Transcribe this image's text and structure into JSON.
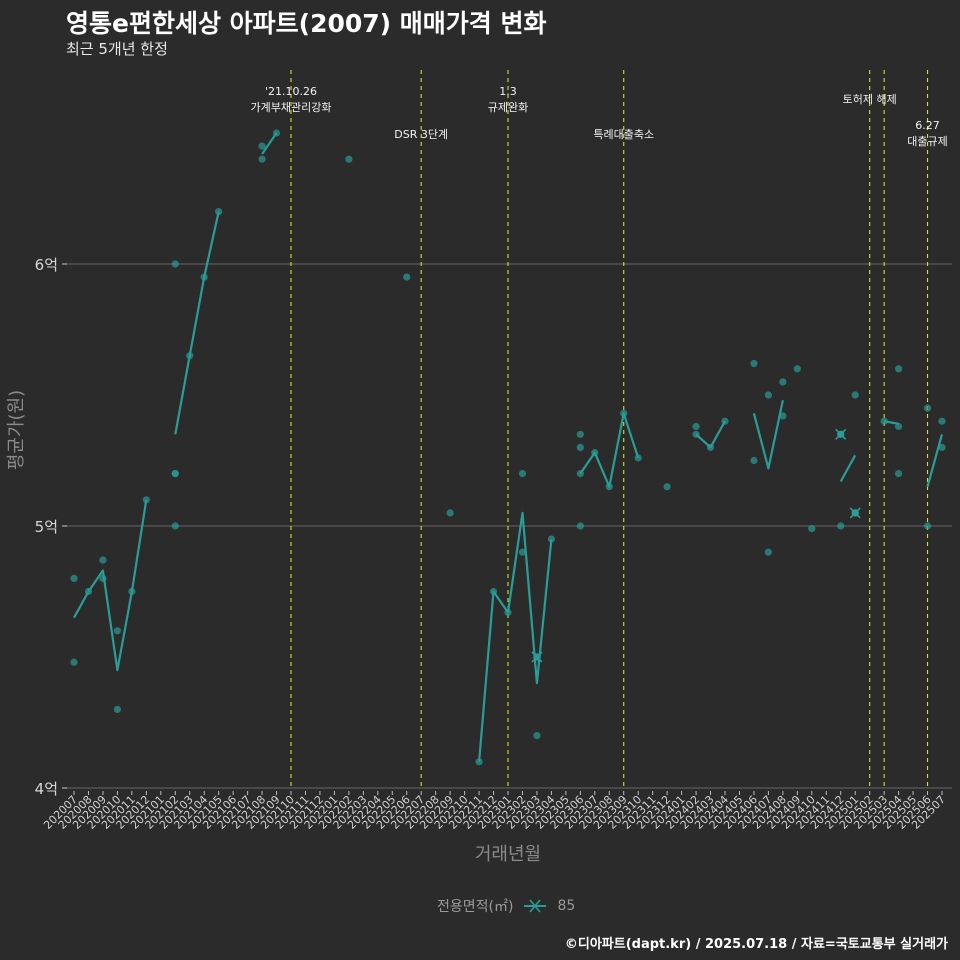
{
  "title": "영통e편한세상 아파트(2007) 매매가격 변화",
  "subtitle": "최근 5개년 한정",
  "caption": "©디아파트(dapt.kr) / 2025.07.18 / 자료=국토교통부 실거래가",
  "colors": {
    "series": "#2a9d97",
    "vline": "#d9e021",
    "grid": "#5a5a5a",
    "bg": "#2b2b2b"
  },
  "chart_data": {
    "type": "line",
    "xlabel": "거래년월",
    "ylabel": "평균가(원)",
    "ylim": [
      4.0,
      6.0
    ],
    "yticks": [
      {
        "value": 4,
        "label": "4억"
      },
      {
        "value": 5,
        "label": "5억"
      },
      {
        "value": 6,
        "label": "6억"
      }
    ],
    "categories": [
      "202007",
      "202008",
      "202009",
      "202010",
      "202011",
      "202012",
      "202101",
      "202102",
      "202103",
      "202104",
      "202105",
      "202106",
      "202107",
      "202108",
      "202109",
      "202110",
      "202111",
      "202112",
      "202201",
      "202202",
      "202203",
      "202204",
      "202205",
      "202206",
      "202207",
      "202208",
      "202209",
      "202210",
      "202211",
      "202212",
      "202301",
      "202302",
      "202303",
      "202304",
      "202305",
      "202306",
      "202307",
      "202308",
      "202309",
      "202310",
      "202311",
      "202312",
      "202401",
      "202402",
      "202403",
      "202404",
      "202405",
      "202406",
      "202407",
      "202408",
      "202409",
      "202410",
      "202411",
      "202412",
      "202501",
      "202502",
      "202503",
      "202504",
      "202505",
      "202506",
      "202507"
    ],
    "legend": {
      "title": "전용면적(㎡)",
      "series_label": "85"
    },
    "series": [
      {
        "name": "85",
        "mean_line": [
          [
            [
              "202007",
              4.65
            ],
            [
              "202008",
              4.75
            ],
            [
              "202009",
              4.83
            ],
            [
              "202010",
              4.45
            ],
            [
              "202011",
              4.75
            ],
            [
              "202012",
              5.1
            ]
          ],
          [
            [
              "202102",
              5.35
            ],
            [
              "202103",
              5.65
            ],
            [
              "202104",
              5.95
            ],
            [
              "202105",
              6.2
            ]
          ],
          [
            [
              "202108",
              6.42
            ],
            [
              "202109",
              6.5
            ]
          ],
          [
            [
              "202211",
              4.1
            ],
            [
              "202212",
              4.75
            ],
            [
              "202301",
              4.67
            ],
            [
              "202302",
              5.05
            ],
            [
              "202303",
              4.4
            ],
            [
              "202304",
              4.95
            ]
          ],
          [
            [
              "202306",
              5.2
            ],
            [
              "202307",
              5.28
            ],
            [
              "202308",
              5.15
            ],
            [
              "202309",
              5.43
            ],
            [
              "202310",
              5.26
            ]
          ],
          [
            [
              "202402",
              5.35
            ],
            [
              "202403",
              5.3
            ],
            [
              "202404",
              5.4
            ]
          ],
          [
            [
              "202406",
              5.43
            ],
            [
              "202407",
              5.22
            ],
            [
              "202408",
              5.48
            ]
          ],
          [
            [
              "202412",
              5.17
            ],
            [
              "202501",
              5.27
            ]
          ],
          [
            [
              "202503",
              5.4
            ],
            [
              "202504",
              5.39
            ]
          ],
          [
            [
              "202506",
              5.15
            ],
            [
              "202507",
              5.35
            ]
          ]
        ],
        "points": [
          [
            "202007",
            4.8
          ],
          [
            "202007",
            4.48
          ],
          [
            "202008",
            4.75
          ],
          [
            "202009",
            4.87
          ],
          [
            "202009",
            4.8
          ],
          [
            "202010",
            4.6
          ],
          [
            "202010",
            4.3
          ],
          [
            "202011",
            4.75
          ],
          [
            "202012",
            5.1
          ],
          [
            "202102",
            6.0
          ],
          [
            "202102",
            5.2
          ],
          [
            "202102",
            5.2
          ],
          [
            "202102",
            5.0
          ],
          [
            "202103",
            5.65
          ],
          [
            "202104",
            5.95
          ],
          [
            "202105",
            6.2
          ],
          [
            "202108",
            6.45
          ],
          [
            "202108",
            6.4
          ],
          [
            "202109",
            6.5
          ],
          [
            "202202",
            6.4
          ],
          [
            "202206",
            5.95
          ],
          [
            "202209",
            5.05
          ],
          [
            "202211",
            4.1
          ],
          [
            "202212",
            4.75
          ],
          [
            "202301",
            4.67
          ],
          [
            "202302",
            5.2
          ],
          [
            "202302",
            4.9
          ],
          [
            "202303",
            4.5
          ],
          [
            "202303",
            4.2
          ],
          [
            "202304",
            4.95
          ],
          [
            "202306",
            5.35
          ],
          [
            "202306",
            5.3
          ],
          [
            "202306",
            5.2
          ],
          [
            "202306",
            5.0
          ],
          [
            "202307",
            5.28
          ],
          [
            "202308",
            5.15
          ],
          [
            "202309",
            5.43
          ],
          [
            "202310",
            5.26
          ],
          [
            "202312",
            5.15
          ],
          [
            "202402",
            5.38
          ],
          [
            "202402",
            5.35
          ],
          [
            "202403",
            5.3
          ],
          [
            "202404",
            5.4
          ],
          [
            "202406",
            5.62
          ],
          [
            "202406",
            5.25
          ],
          [
            "202407",
            5.5
          ],
          [
            "202407",
            4.9
          ],
          [
            "202408",
            5.55
          ],
          [
            "202408",
            5.42
          ],
          [
            "202409",
            5.6
          ],
          [
            "202410",
            4.99
          ],
          [
            "202412",
            5.0
          ],
          [
            "202412",
            5.35
          ],
          [
            "202501",
            5.5
          ],
          [
            "202501",
            5.05
          ],
          [
            "202503",
            5.4
          ],
          [
            "202504",
            5.6
          ],
          [
            "202504",
            5.38
          ],
          [
            "202504",
            5.2
          ],
          [
            "202506",
            5.45
          ],
          [
            "202506",
            5.0
          ],
          [
            "202507",
            5.4
          ],
          [
            "202507",
            5.3
          ]
        ],
        "cancelled": [
          [
            "202303",
            4.5
          ],
          [
            "202412",
            5.35
          ],
          [
            "202501",
            5.05
          ]
        ]
      }
    ],
    "vlines": [
      {
        "x": "202110",
        "labels": [
          "'21.10.26",
          "가계부채관리강화"
        ],
        "row": 1
      },
      {
        "x": "202207",
        "labels": [
          "DSR 3단계"
        ],
        "row": 3
      },
      {
        "x": "202301",
        "labels": [
          "1.3",
          "규제완화"
        ],
        "row": 1
      },
      {
        "x": "202309",
        "labels": [
          "특례대출축소"
        ],
        "row": 3
      },
      {
        "x": "202502",
        "labels": [
          "토허제 해제"
        ],
        "row": 2
      },
      {
        "x": "202503",
        "labels": [],
        "row": 2
      },
      {
        "x": "202506",
        "labels": [
          "6.27",
          "대출규제"
        ],
        "row": 4
      }
    ]
  }
}
